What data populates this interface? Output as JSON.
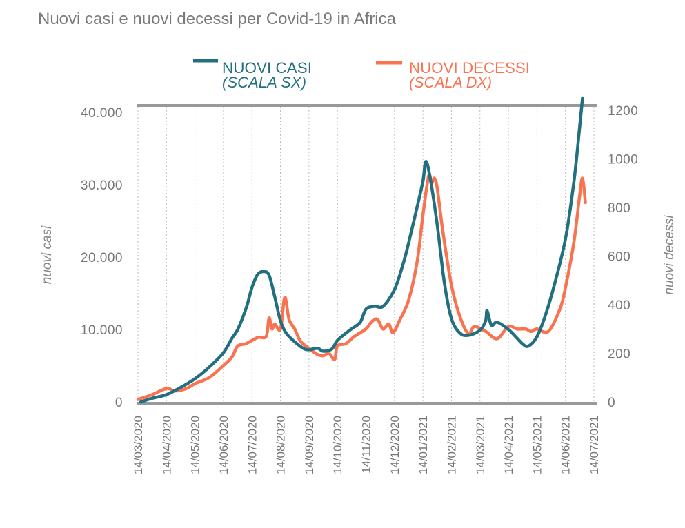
{
  "chart_data": {
    "type": "line",
    "title": "Nuovi casi e nuovi decessi per Covid-19 in Africa",
    "xlabel": "",
    "ylabel": "nuovi casi",
    "y2label": "nuovi decessi",
    "ylim": [
      0,
      40000
    ],
    "y2lim": [
      0,
      1200
    ],
    "grid": "vertical dotted",
    "legend_position": "top-center",
    "x_unit": "months since 14/03/2020",
    "categories": [
      "14/03/2020",
      "14/04/2020",
      "14/05/2020",
      "14/06/2020",
      "14/07/2020",
      "14/08/2020",
      "14/09/2020",
      "14/10/2020",
      "14/11/2020",
      "14/12/2020",
      "14/01/2021",
      "14/02/2021",
      "14/03/2021",
      "14/04/2021",
      "14/05/2021",
      "14/06/2021",
      "14/07/2021"
    ],
    "yticks": [
      "0",
      "10.000",
      "20.000",
      "30.000",
      "40.000"
    ],
    "y2ticks": [
      "0",
      "200",
      "400",
      "600",
      "800",
      "1000",
      "1200"
    ],
    "series": [
      {
        "name": "NUOVI CASI",
        "sub": "(SCALA SX)",
        "axis": "left",
        "color": "#22707f",
        "x": [
          0.1,
          0.5,
          1,
          1.5,
          2,
          2.5,
          3,
          3.3,
          3.5,
          3.8,
          4.0,
          4.2,
          4.4,
          4.6,
          4.8,
          5.0,
          5.2,
          5.5,
          5.8,
          6.0,
          6.3,
          6.5,
          6.8,
          7.0,
          7.3,
          7.5,
          7.8,
          8.0,
          8.3,
          8.6,
          9.0,
          9.3,
          9.5,
          9.8,
          10.0,
          10.1,
          10.25,
          10.5,
          10.75,
          11.0,
          11.3,
          11.6,
          12.0,
          12.2,
          12.25,
          12.4,
          12.6,
          13.0,
          13.3,
          13.5,
          13.7,
          14.0,
          14.3,
          14.6,
          15.0,
          15.3,
          15.5,
          15.6
        ],
        "values": [
          0,
          500,
          1000,
          2000,
          3200,
          4800,
          6800,
          8800,
          10000,
          13000,
          15800,
          17600,
          18000,
          17500,
          14500,
          11200,
          9500,
          8300,
          7400,
          7200,
          7400,
          7000,
          7300,
          8500,
          9500,
          10100,
          11000,
          12800,
          13200,
          13200,
          15500,
          19000,
          22000,
          27000,
          30500,
          33200,
          31000,
          24500,
          16500,
          11500,
          9500,
          9200,
          9900,
          11200,
          12600,
          10600,
          11000,
          10000,
          8800,
          8000,
          7700,
          9000,
          12000,
          16000,
          22500,
          30500,
          38000,
          42000
        ]
      },
      {
        "name": "NUOVI DECESSI",
        "sub": "(SCALA DX)",
        "axis": "right",
        "color": "#f97350",
        "x": [
          0,
          0.5,
          1.0,
          1.3,
          1.7,
          2.0,
          2.5,
          3.0,
          3.3,
          3.5,
          3.8,
          4.2,
          4.5,
          4.6,
          4.7,
          4.8,
          5.0,
          5.15,
          5.3,
          5.5,
          5.7,
          6.0,
          6.3,
          6.5,
          6.7,
          6.9,
          7.0,
          7.3,
          7.6,
          8.0,
          8.2,
          8.4,
          8.6,
          8.8,
          8.95,
          9.2,
          9.5,
          9.8,
          10.0,
          10.2,
          10.3,
          10.4,
          10.5,
          10.7,
          11.0,
          11.3,
          11.6,
          11.8,
          12.2,
          12.6,
          13.0,
          13.3,
          13.6,
          13.8,
          14.0,
          14.4,
          14.8,
          15.0,
          15.3,
          15.5,
          15.6,
          15.7
        ],
        "values": [
          10,
          30,
          55,
          45,
          55,
          75,
          100,
          150,
          185,
          230,
          240,
          265,
          270,
          345,
          300,
          320,
          300,
          430,
          340,
          300,
          250,
          220,
          195,
          190,
          200,
          175,
          230,
          240,
          270,
          300,
          330,
          340,
          300,
          320,
          285,
          340,
          420,
          580,
          770,
          930,
          900,
          920,
          880,
          700,
          480,
          350,
          280,
          310,
          290,
          260,
          310,
          300,
          300,
          290,
          300,
          290,
          380,
          470,
          660,
          850,
          920,
          820
        ]
      }
    ]
  }
}
